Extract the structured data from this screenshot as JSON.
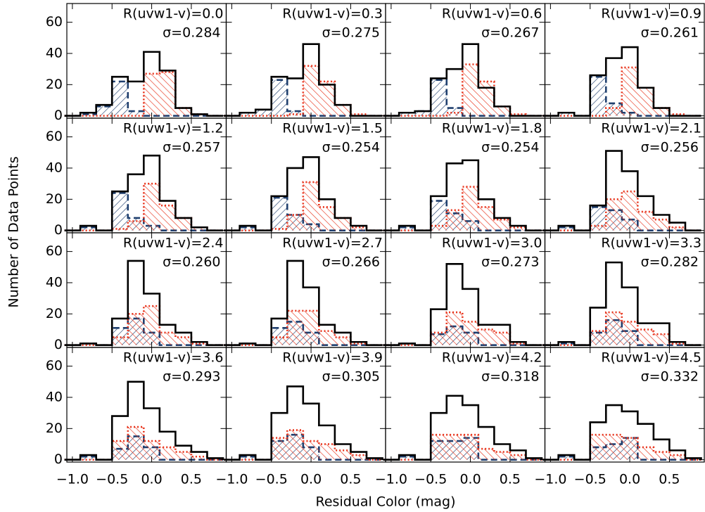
{
  "axes": {
    "xlabel": "Residual Color (mag)",
    "ylabel": "Number of Data Points",
    "xlim": [
      -1.07,
      0.94
    ],
    "ylim": [
      -1.5,
      72
    ],
    "xticks": [
      {
        "value": -1.0,
        "label": "−1.0"
      },
      {
        "value": -0.5,
        "label": "−0.5"
      },
      {
        "value": 0.0,
        "label": "0.0"
      },
      {
        "value": 0.5,
        "label": "0.5"
      }
    ],
    "yticks": [
      0,
      20,
      40,
      60
    ]
  },
  "chart_data": [
    {
      "type": "histogram",
      "title": "R(uvw1-v)=0.0",
      "subtitle": "σ=0.284",
      "bins": [
        -1.1,
        -0.9,
        -0.7,
        -0.5,
        -0.3,
        -0.1,
        0.1,
        0.3,
        0.5,
        0.7,
        0.9
      ],
      "series": [
        {
          "color": "#000000",
          "values": [
            0,
            2,
            7,
            25,
            22,
            41,
            29,
            5,
            1,
            0
          ]
        },
        {
          "color": "#1f3f6e",
          "values": [
            0,
            1,
            6,
            22,
            3,
            0,
            0,
            0,
            0,
            0
          ]
        },
        {
          "color": "#e8341c",
          "values": [
            0,
            0,
            0,
            0,
            0,
            27,
            28,
            5,
            1,
            0
          ]
        }
      ]
    },
    {
      "type": "histogram",
      "title": "R(uvw1-v)=0.3",
      "subtitle": "σ=0.275",
      "bins": [
        -1.1,
        -0.9,
        -0.7,
        -0.5,
        -0.3,
        -0.1,
        0.1,
        0.3,
        0.5,
        0.7,
        0.9
      ],
      "series": [
        {
          "color": "#000000",
          "values": [
            0,
            2,
            4,
            25,
            24,
            46,
            20,
            7,
            0,
            0
          ]
        },
        {
          "color": "#1f3f6e",
          "values": [
            0,
            2,
            4,
            23,
            3,
            0,
            0,
            0,
            0,
            0
          ]
        },
        {
          "color": "#e8341c",
          "values": [
            0,
            0,
            0,
            0,
            1,
            32,
            22,
            7,
            1,
            0
          ]
        }
      ]
    },
    {
      "type": "histogram",
      "title": "R(uvw1-v)=0.6",
      "subtitle": "σ=0.267",
      "bins": [
        -1.1,
        -0.9,
        -0.7,
        -0.5,
        -0.3,
        -0.1,
        0.1,
        0.3,
        0.5,
        0.7,
        0.9
      ],
      "series": [
        {
          "color": "#000000",
          "values": [
            0,
            2,
            3,
            24,
            30,
            46,
            18,
            6,
            0,
            0
          ]
        },
        {
          "color": "#1f3f6e",
          "values": [
            0,
            2,
            3,
            23,
            5,
            0,
            0,
            0,
            0,
            0
          ]
        },
        {
          "color": "#e8341c",
          "values": [
            0,
            0,
            0,
            0,
            2,
            33,
            22,
            6,
            1,
            0
          ]
        }
      ]
    },
    {
      "type": "histogram",
      "title": "R(uvw1-v)=0.9",
      "subtitle": "σ=0.261",
      "bins": [
        -1.1,
        -0.9,
        -0.7,
        -0.5,
        -0.3,
        -0.1,
        0.1,
        0.3,
        0.5,
        0.7,
        0.9
      ],
      "series": [
        {
          "color": "#000000",
          "values": [
            0,
            2,
            0,
            26,
            37,
            44,
            18,
            5,
            0,
            0
          ]
        },
        {
          "color": "#1f3f6e",
          "values": [
            0,
            2,
            0,
            25,
            8,
            2,
            0,
            0,
            0,
            0
          ]
        },
        {
          "color": "#e8341c",
          "values": [
            0,
            0,
            0,
            0,
            5,
            31,
            18,
            5,
            1,
            0
          ]
        }
      ]
    },
    {
      "type": "histogram",
      "title": "R(uvw1-v)=1.2",
      "subtitle": "σ=0.257",
      "bins": [
        -1.1,
        -0.9,
        -0.7,
        -0.5,
        -0.3,
        -0.1,
        0.1,
        0.3,
        0.5,
        0.7,
        0.9
      ],
      "series": [
        {
          "color": "#000000",
          "values": [
            0,
            3,
            0,
            25,
            36,
            48,
            19,
            8,
            2,
            0
          ]
        },
        {
          "color": "#1f3f6e",
          "values": [
            0,
            2,
            0,
            24,
            8,
            3,
            0,
            0,
            0,
            0
          ]
        },
        {
          "color": "#e8341c",
          "values": [
            0,
            0,
            0,
            1,
            6,
            30,
            16,
            8,
            2,
            0
          ]
        }
      ]
    },
    {
      "type": "histogram",
      "title": "R(uvw1-v)=1.5",
      "subtitle": "σ=0.254",
      "bins": [
        -1.1,
        -0.9,
        -0.7,
        -0.5,
        -0.3,
        -0.1,
        0.1,
        0.3,
        0.5,
        0.7,
        0.9
      ],
      "series": [
        {
          "color": "#000000",
          "values": [
            0,
            3,
            0,
            22,
            40,
            47,
            20,
            8,
            3,
            0
          ]
        },
        {
          "color": "#1f3f6e",
          "values": [
            0,
            2,
            0,
            21,
            10,
            4,
            0,
            0,
            0,
            0
          ]
        },
        {
          "color": "#e8341c",
          "values": [
            0,
            0,
            0,
            1,
            10,
            31,
            15,
            8,
            2,
            0
          ]
        }
      ]
    },
    {
      "type": "histogram",
      "title": "R(uvw1-v)=1.8",
      "subtitle": "σ=0.254",
      "bins": [
        -1.1,
        -0.9,
        -0.7,
        -0.5,
        -0.3,
        -0.1,
        0.1,
        0.3,
        0.5,
        0.7,
        0.9
      ],
      "series": [
        {
          "color": "#000000",
          "values": [
            0,
            3,
            0,
            22,
            43,
            45,
            20,
            8,
            3,
            0
          ]
        },
        {
          "color": "#1f3f6e",
          "values": [
            0,
            2,
            0,
            19,
            11,
            6,
            0,
            0,
            0,
            0
          ]
        },
        {
          "color": "#e8341c",
          "values": [
            0,
            0,
            0,
            3,
            13,
            28,
            15,
            7,
            2,
            0
          ]
        }
      ]
    },
    {
      "type": "histogram",
      "title": "R(uvw1-v)=2.1",
      "subtitle": "σ=0.256",
      "bins": [
        -1.1,
        -0.9,
        -0.7,
        -0.5,
        -0.3,
        -0.1,
        0.1,
        0.3,
        0.5,
        0.7,
        0.9
      ],
      "series": [
        {
          "color": "#000000",
          "values": [
            0,
            3,
            0,
            16,
            51,
            38,
            22,
            10,
            5,
            0
          ]
        },
        {
          "color": "#1f3f6e",
          "values": [
            0,
            2,
            0,
            15,
            13,
            7,
            0,
            0,
            0,
            0
          ]
        },
        {
          "color": "#e8341c",
          "values": [
            0,
            0,
            0,
            3,
            20,
            25,
            12,
            7,
            2,
            0
          ]
        }
      ]
    },
    {
      "type": "histogram",
      "title": "R(uvw1-v)=2.4",
      "subtitle": "σ=0.260",
      "bins": [
        -1.1,
        -0.9,
        -0.7,
        -0.5,
        -0.3,
        -0.1,
        0.1,
        0.3,
        0.5,
        0.7,
        0.9
      ],
      "series": [
        {
          "color": "#000000",
          "values": [
            0,
            1,
            0,
            17,
            54,
            33,
            13,
            8,
            2,
            0
          ]
        },
        {
          "color": "#1f3f6e",
          "values": [
            0,
            1,
            0,
            11,
            17,
            8,
            0,
            0,
            0,
            0
          ]
        },
        {
          "color": "#e8341c",
          "values": [
            0,
            0,
            0,
            5,
            20,
            25,
            8,
            5,
            1,
            0
          ]
        }
      ]
    },
    {
      "type": "histogram",
      "title": "R(uvw1-v)=2.7",
      "subtitle": "σ=0.266",
      "bins": [
        -1.1,
        -0.9,
        -0.7,
        -0.5,
        -0.3,
        -0.1,
        0.1,
        0.3,
        0.5,
        0.7,
        0.9
      ],
      "series": [
        {
          "color": "#000000",
          "values": [
            0,
            1,
            0,
            17,
            54,
            37,
            13,
            8,
            2,
            0
          ]
        },
        {
          "color": "#1f3f6e",
          "values": [
            0,
            1,
            0,
            11,
            15,
            8,
            0,
            0,
            0,
            0
          ]
        },
        {
          "color": "#e8341c",
          "values": [
            0,
            0,
            0,
            5,
            22,
            22,
            9,
            5,
            1,
            0
          ]
        }
      ]
    },
    {
      "type": "histogram",
      "title": "R(uvw1-v)=3.0",
      "subtitle": "σ=0.273",
      "bins": [
        -1.1,
        -0.9,
        -0.7,
        -0.5,
        -0.3,
        -0.1,
        0.1,
        0.3,
        0.5,
        0.7,
        0.9
      ],
      "series": [
        {
          "color": "#000000",
          "values": [
            0,
            1,
            0,
            23,
            52,
            36,
            13,
            13,
            2,
            0
          ]
        },
        {
          "color": "#1f3f6e",
          "values": [
            0,
            1,
            0,
            7,
            12,
            8,
            0,
            0,
            0,
            0
          ]
        },
        {
          "color": "#e8341c",
          "values": [
            0,
            0,
            0,
            8,
            21,
            15,
            10,
            8,
            1,
            0
          ]
        }
      ]
    },
    {
      "type": "histogram",
      "title": "R(uvw1-v)=3.3",
      "subtitle": "σ=0.282",
      "bins": [
        -1.1,
        -0.9,
        -0.7,
        -0.5,
        -0.3,
        -0.1,
        0.1,
        0.3,
        0.5,
        0.7,
        0.9
      ],
      "series": [
        {
          "color": "#000000",
          "values": [
            0,
            2,
            0,
            24,
            53,
            37,
            14,
            14,
            2,
            0
          ]
        },
        {
          "color": "#1f3f6e",
          "values": [
            0,
            1,
            0,
            8,
            16,
            9,
            0,
            0,
            0,
            0
          ]
        },
        {
          "color": "#e8341c",
          "values": [
            0,
            0,
            0,
            9,
            21,
            15,
            10,
            7,
            1,
            0
          ]
        }
      ]
    },
    {
      "type": "histogram",
      "title": "R(uvw1-v)=3.6",
      "subtitle": "σ=0.293",
      "bins": [
        -1.1,
        -0.9,
        -0.7,
        -0.5,
        -0.3,
        -0.1,
        0.1,
        0.3,
        0.5,
        0.7,
        0.9
      ],
      "series": [
        {
          "color": "#000000",
          "values": [
            0,
            3,
            0,
            28,
            50,
            33,
            18,
            9,
            5,
            1
          ]
        },
        {
          "color": "#1f3f6e",
          "values": [
            0,
            2,
            0,
            7,
            15,
            8,
            0,
            0,
            0,
            0
          ]
        },
        {
          "color": "#e8341c",
          "values": [
            0,
            0,
            0,
            12,
            21,
            12,
            8,
            5,
            2,
            0
          ]
        }
      ]
    },
    {
      "type": "histogram",
      "title": "R(uvw1-v)=3.9",
      "subtitle": "σ=0.305",
      "bins": [
        -1.1,
        -0.9,
        -0.7,
        -0.5,
        -0.3,
        -0.1,
        0.1,
        0.3,
        0.5,
        0.7,
        0.9
      ],
      "series": [
        {
          "color": "#000000",
          "values": [
            0,
            3,
            0,
            30,
            47,
            36,
            22,
            10,
            5,
            1
          ]
        },
        {
          "color": "#1f3f6e",
          "values": [
            0,
            2,
            0,
            12,
            16,
            8,
            0,
            0,
            0,
            0
          ]
        },
        {
          "color": "#e8341c",
          "values": [
            0,
            0,
            0,
            14,
            19,
            12,
            10,
            6,
            3,
            0
          ]
        }
      ]
    },
    {
      "type": "histogram",
      "title": "R(uvw1-v)=4.2",
      "subtitle": "σ=0.318",
      "bins": [
        -1.1,
        -0.9,
        -0.7,
        -0.5,
        -0.3,
        -0.1,
        0.1,
        0.3,
        0.5,
        0.7,
        0.9
      ],
      "series": [
        {
          "color": "#000000",
          "values": [
            0,
            3,
            0,
            30,
            41,
            35,
            21,
            10,
            6,
            1
          ]
        },
        {
          "color": "#1f3f6e",
          "values": [
            0,
            2,
            0,
            12,
            12,
            14,
            0,
            0,
            0,
            0
          ]
        },
        {
          "color": "#e8341c",
          "values": [
            0,
            0,
            0,
            16,
            16,
            16,
            7,
            5,
            3,
            0
          ]
        }
      ]
    },
    {
      "type": "histogram",
      "title": "R(uvw1-v)=4.5",
      "subtitle": "σ=0.332",
      "bins": [
        -1.1,
        -0.9,
        -0.7,
        -0.5,
        -0.3,
        -0.1,
        0.1,
        0.3,
        0.5,
        0.7,
        0.9
      ],
      "series": [
        {
          "color": "#000000",
          "values": [
            0,
            3,
            0,
            24,
            35,
            31,
            23,
            13,
            6,
            1
          ]
        },
        {
          "color": "#1f3f6e",
          "values": [
            0,
            2,
            0,
            8,
            10,
            14,
            0,
            0,
            0,
            0
          ]
        },
        {
          "color": "#e8341c",
          "values": [
            0,
            0,
            0,
            16,
            16,
            14,
            8,
            5,
            3,
            0
          ]
        }
      ]
    }
  ]
}
